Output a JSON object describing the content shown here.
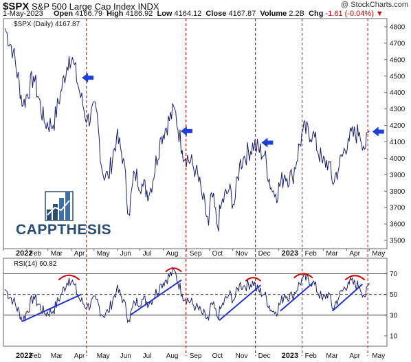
{
  "header": {
    "symbol": "$SPX",
    "name": "S&P 500 Large Cap Index",
    "exchange": "INDX",
    "brand": "@ StockCharts.com",
    "date": "1-May-2023",
    "open_label": "Open",
    "open": "4166.79",
    "high_label": "High",
    "high": "4186.92",
    "low_label": "Low",
    "low": "4164.12",
    "close_label": "Close",
    "close": "4167.87",
    "volume_label": "Volume",
    "volume": "2.2B",
    "chg_label": "Chg",
    "chg": "-1.61 (-0.04%)",
    "chg_color": "#cc0000"
  },
  "logo": {
    "text": "CAPPTHESIS",
    "color": "#2c4d6e",
    "accent": "#3d6fa8"
  },
  "colors": {
    "price": "#1a1f6e",
    "rsi": "#1a1f6e",
    "markers": "#cc0000",
    "trendlines": "#2233cc",
    "arcs": "#cc0000",
    "arrows": "#1f3fd8"
  },
  "chart_data": [
    {
      "type": "line",
      "title": "$SPX (Daily) 4167.87",
      "ylim": [
        3450,
        4850
      ],
      "y_ticks": [
        "3500",
        "3600",
        "3700",
        "3800",
        "3900",
        "4000",
        "4100",
        "4200",
        "4300",
        "4400",
        "4500",
        "4600",
        "4700",
        "4800"
      ],
      "x_ticks": [
        "2022",
        "Feb",
        "Mar",
        "Apr",
        "May",
        "Jun",
        "Jul",
        "Aug",
        "Sep",
        "Oct",
        "Nov",
        "Dec",
        "2023",
        "Feb",
        "Mar",
        "Apr",
        "May"
      ],
      "series": [
        {
          "x": [
            "2022-01-03",
            "2022-01-14",
            "2022-01-27",
            "2022-02-10",
            "2022-02-24",
            "2022-03-08",
            "2022-03-29",
            "2022-04-04",
            "2022-04-12",
            "2022-04-22",
            "2022-05-04",
            "2022-05-12",
            "2022-05-20",
            "2022-05-31",
            "2022-06-09",
            "2022-06-16",
            "2022-06-24",
            "2022-07-05",
            "2022-07-14",
            "2022-07-29",
            "2022-08-16",
            "2022-08-26",
            "2022-09-13",
            "2022-09-21",
            "2022-09-30",
            "2022-10-04",
            "2022-10-12",
            "2022-10-17",
            "2022-10-27",
            "2022-11-03",
            "2022-11-10",
            "2022-11-15",
            "2022-11-30",
            "2022-12-01",
            "2022-12-13",
            "2022-12-22",
            "2022-12-28",
            "2023-01-09",
            "2023-01-19",
            "2023-02-02",
            "2023-02-15",
            "2023-02-28",
            "2023-03-08",
            "2023-03-13",
            "2023-03-22",
            "2023-04-03",
            "2023-04-18",
            "2023-04-26",
            "2023-05-01"
          ],
          "values": [
            4790,
            4650,
            4320,
            4500,
            4220,
            4200,
            4620,
            4580,
            4400,
            4230,
            4300,
            3920,
            3880,
            4130,
            4000,
            3660,
            3910,
            3830,
            3790,
            4130,
            4300,
            4050,
            3930,
            3780,
            3590,
            3790,
            3580,
            3720,
            3810,
            3720,
            3960,
            4000,
            4090,
            4070,
            4020,
            3820,
            3780,
            3900,
            3880,
            4170,
            4150,
            3970,
            3980,
            3850,
            3950,
            4120,
            4160,
            4060,
            4168
          ]
        }
      ]
    },
    {
      "type": "line",
      "title": "RSI(14) 60.82",
      "ylim": [
        0,
        85
      ],
      "y_ticks": [
        "10",
        "30",
        "50",
        "70"
      ],
      "reference_lines": [
        30,
        50,
        70
      ],
      "x_ticks": [
        "2022",
        "Feb",
        "Mar",
        "Apr",
        "May",
        "Jun",
        "Jul",
        "Aug",
        "Sep",
        "Oct",
        "Nov",
        "Dec",
        "2023",
        "Feb",
        "Mar",
        "Apr",
        "May"
      ],
      "series": [
        {
          "x": [
            "2022-01-03",
            "2022-01-14",
            "2022-01-27",
            "2022-02-10",
            "2022-02-24",
            "2022-03-08",
            "2022-03-29",
            "2022-04-04",
            "2022-04-12",
            "2022-04-22",
            "2022-05-04",
            "2022-05-12",
            "2022-05-20",
            "2022-05-31",
            "2022-06-09",
            "2022-06-16",
            "2022-06-24",
            "2022-07-05",
            "2022-07-14",
            "2022-07-29",
            "2022-08-16",
            "2022-08-26",
            "2022-09-13",
            "2022-09-21",
            "2022-09-30",
            "2022-10-04",
            "2022-10-12",
            "2022-10-17",
            "2022-10-27",
            "2022-11-03",
            "2022-11-10",
            "2022-11-15",
            "2022-11-30",
            "2022-12-01",
            "2022-12-13",
            "2022-12-22",
            "2022-12-28",
            "2023-01-09",
            "2023-01-19",
            "2023-02-02",
            "2023-02-15",
            "2023-02-28",
            "2023-03-08",
            "2023-03-13",
            "2023-03-22",
            "2023-04-03",
            "2023-04-18",
            "2023-04-26",
            "2023-05-01"
          ],
          "values": [
            55,
            44,
            25,
            48,
            32,
            34,
            66,
            60,
            45,
            38,
            45,
            30,
            33,
            55,
            45,
            25,
            42,
            45,
            42,
            60,
            73,
            50,
            38,
            32,
            25,
            42,
            28,
            38,
            50,
            45,
            60,
            58,
            62,
            56,
            50,
            35,
            33,
            50,
            48,
            66,
            62,
            45,
            52,
            36,
            48,
            62,
            58,
            48,
            61
          ]
        }
      ]
    }
  ],
  "annotations": {
    "vertical_markers": [
      "2022-04-21",
      "2022-08-31",
      "2022-12-01",
      "2023-02-01",
      "2023-04-29"
    ],
    "arrows": [
      {
        "date": "2022-04-15",
        "value": 4490
      },
      {
        "date": "2022-08-24",
        "value": 4165
      },
      {
        "date": "2022-12-09",
        "value": 4095
      },
      {
        "date": "2023-05-05",
        "value": 4162
      }
    ],
    "arcs": [
      {
        "from": "2022-03-15",
        "to": "2022-04-12",
        "level": 64
      },
      {
        "from": "2022-08-04",
        "to": "2022-08-25",
        "level": 72
      },
      {
        "from": "2022-11-18",
        "to": "2022-12-08",
        "level": 63
      },
      {
        "from": "2023-01-21",
        "to": "2023-02-15",
        "level": 66
      },
      {
        "from": "2023-03-30",
        "to": "2023-04-25",
        "level": 64
      }
    ],
    "trendlines": [
      {
        "from": [
          "2022-01-26",
          24
        ],
        "to": [
          "2022-04-14",
          50
        ]
      },
      {
        "from": [
          "2022-06-18",
          30
        ],
        "to": [
          "2022-08-25",
          64
        ]
      },
      {
        "from": [
          "2022-10-14",
          25
        ],
        "to": [
          "2022-12-08",
          59
        ]
      },
      {
        "from": [
          "2023-01-03",
          34
        ],
        "to": [
          "2023-02-15",
          61
        ]
      },
      {
        "from": [
          "2023-03-13",
          34
        ],
        "to": [
          "2023-04-22",
          60
        ]
      }
    ]
  }
}
